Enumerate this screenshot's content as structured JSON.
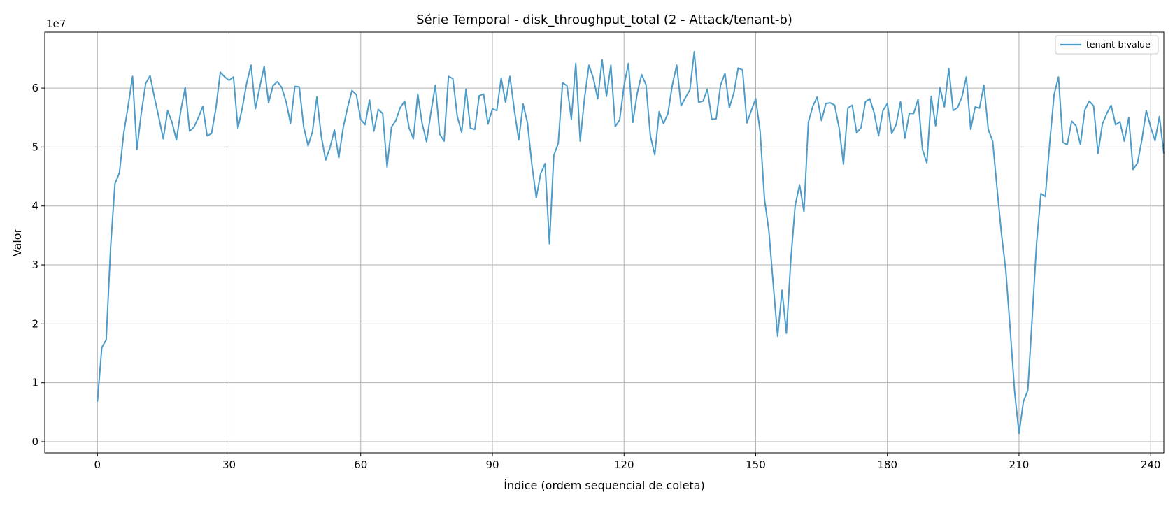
{
  "chart_data": {
    "type": "line",
    "title": "Série Temporal - disk_throughput_total (2 - Attack/tenant-b)",
    "xlabel": "Índice (ordem sequencial de coleta)",
    "ylabel": "Valor",
    "y_offset_label": "1e7",
    "xlim": [
      -12,
      243
    ],
    "ylim": [
      -1900000,
      69500000
    ],
    "x_ticks": [
      0,
      30,
      60,
      90,
      120,
      150,
      180,
      210,
      240
    ],
    "y_ticks": [
      0,
      10000000,
      20000000,
      30000000,
      40000000,
      50000000,
      60000000
    ],
    "y_tick_labels": [
      "0",
      "1",
      "2",
      "3",
      "4",
      "5",
      "6"
    ],
    "grid": true,
    "legend_position": "top-right",
    "series": [
      {
        "name": "tenant-b:value",
        "color": "#4c9bc8",
        "x_start": 0,
        "x_step": 1,
        "values": [
          6800000,
          16000000,
          17300000,
          33000000,
          43800000,
          45600000,
          52400000,
          57000000,
          62000000,
          49600000,
          55800000,
          60800000,
          62100000,
          58400000,
          55000000,
          51400000,
          56200000,
          54200000,
          51200000,
          56200000,
          60100000,
          52700000,
          53400000,
          55000000,
          56900000,
          51900000,
          52300000,
          56600000,
          62700000,
          61900000,
          61300000,
          61900000,
          53200000,
          56600000,
          60800000,
          63900000,
          56500000,
          60200000,
          63700000,
          57500000,
          60400000,
          61100000,
          60100000,
          57700000,
          54000000,
          60300000,
          60200000,
          53400000,
          50200000,
          52600000,
          58500000,
          51900000,
          47800000,
          49900000,
          52900000,
          48200000,
          53300000,
          56700000,
          59600000,
          58900000,
          54700000,
          53800000,
          58000000,
          52700000,
          56400000,
          55700000,
          46600000,
          53400000,
          54500000,
          56700000,
          57800000,
          53300000,
          51400000,
          59000000,
          54000000,
          50900000,
          55900000,
          60500000,
          52200000,
          51000000,
          62000000,
          61600000,
          55200000,
          52500000,
          59800000,
          53200000,
          53000000,
          58700000,
          59000000,
          53900000,
          56500000,
          56200000,
          61700000,
          57600000,
          62000000,
          56300000,
          51200000,
          57300000,
          54100000,
          47000000,
          41400000,
          45500000,
          47200000,
          33600000,
          48600000,
          50600000,
          60900000,
          60400000,
          54700000,
          64200000,
          51000000,
          58300000,
          63900000,
          61700000,
          58200000,
          64800000,
          58600000,
          63900000,
          53500000,
          54600000,
          60400000,
          64200000,
          54200000,
          59100000,
          62300000,
          60600000,
          51900000,
          48700000,
          56000000,
          54000000,
          55700000,
          60500000,
          63900000,
          57000000,
          58400000,
          59700000,
          66200000,
          57600000,
          57800000,
          59800000,
          54700000,
          54800000,
          60500000,
          62500000,
          56700000,
          59100000,
          63400000,
          63100000,
          54100000,
          56200000,
          58200000,
          52700000,
          41200000,
          35800000,
          26700000,
          17900000,
          25700000,
          18400000,
          30800000,
          40100000,
          43600000,
          39000000,
          54200000,
          56900000,
          58500000,
          54500000,
          57400000,
          57500000,
          57100000,
          53300000,
          47100000,
          56600000,
          57100000,
          52400000,
          53300000,
          57700000,
          58200000,
          55800000,
          51900000,
          56200000,
          57400000,
          52300000,
          53800000,
          57700000,
          51500000,
          55700000,
          55700000,
          58100000,
          49600000,
          47300000,
          58600000,
          53600000,
          60100000,
          56800000,
          63300000,
          56200000,
          56700000,
          58500000,
          61900000,
          53000000,
          56800000,
          56600000,
          60500000,
          53000000,
          51000000,
          43000000,
          35300000,
          29000000,
          19000000,
          8500000,
          1400000,
          6800000,
          8700000,
          21000000,
          33600000,
          42100000,
          41600000,
          50700000,
          58900000,
          61900000,
          50800000,
          50400000,
          54400000,
          53600000,
          50400000,
          56300000,
          57800000,
          57000000,
          48900000,
          53900000,
          55700000,
          57100000,
          53800000,
          54300000,
          51000000,
          55000000,
          46200000,
          47300000,
          51200000,
          56200000,
          53400000,
          51100000,
          55200000,
          48900000
        ]
      }
    ]
  }
}
